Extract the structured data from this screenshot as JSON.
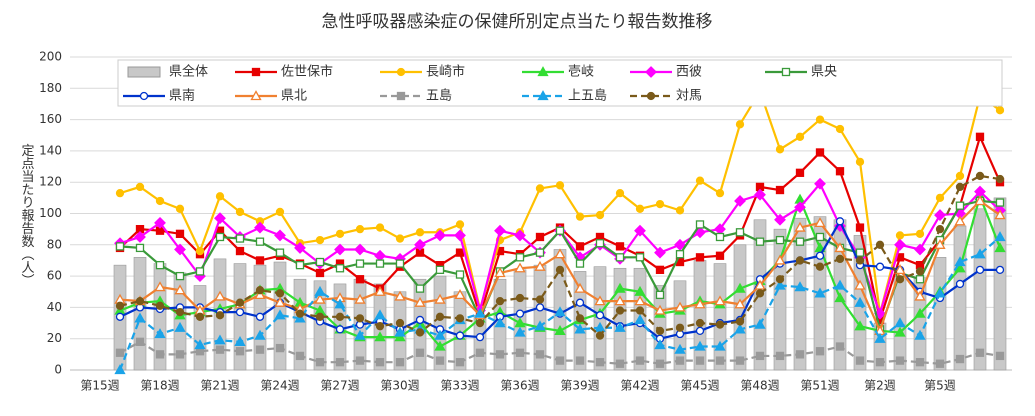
{
  "chart_data": {
    "type": "combo",
    "title": "急性呼吸器感染症の保健所別定点当たり報告数推移",
    "y_label": "定点当たり報告数（人）",
    "categories": [
      "第15週",
      null,
      null,
      "第18週",
      null,
      null,
      "第21週",
      null,
      null,
      "第24週",
      null,
      null,
      "第27週",
      null,
      null,
      "第30週",
      null,
      null,
      "第33週",
      null,
      null,
      "第36週",
      null,
      null,
      "第39週",
      null,
      null,
      "第42週",
      null,
      null,
      "第45週",
      null,
      null,
      "第48週",
      null,
      null,
      "第51週",
      null,
      null,
      "第2週",
      null,
      null,
      "第5週",
      null,
      null
    ],
    "ylim": [
      0,
      200
    ],
    "yticks": [
      0,
      20,
      40,
      60,
      80,
      100,
      120,
      140,
      160,
      180,
      200
    ],
    "grid": true,
    "series": [
      {
        "name": "県全体",
        "type": "bar",
        "color": "#c8c8c8",
        "values": [
          67,
          72,
          68,
          62,
          54,
          71,
          68,
          67,
          69,
          58,
          57,
          55,
          58,
          55,
          50,
          58,
          60,
          50,
          35,
          58,
          64,
          67,
          77,
          63,
          66,
          65,
          65,
          54,
          57,
          70,
          68,
          80,
          96,
          90,
          97,
          98,
          96,
          86,
          30,
          60,
          59,
          72,
          92,
          103,
          110
        ]
      },
      {
        "name": "佐世保市",
        "type": "line",
        "color": "#e60000",
        "marker": "square",
        "hollow": false,
        "dash": false,
        "values": [
          78,
          90,
          89,
          87,
          74,
          89,
          76,
          70,
          73,
          68,
          62,
          68,
          58,
          52,
          66,
          75,
          67,
          75,
          35,
          76,
          74,
          85,
          91,
          79,
          85,
          79,
          73,
          64,
          69,
          72,
          73,
          86,
          117,
          115,
          126,
          139,
          127,
          91,
          32,
          72,
          67,
          83,
          105,
          149,
          120
        ]
      },
      {
        "name": "長崎市",
        "type": "line",
        "color": "#ffc000",
        "marker": "circle",
        "hollow": false,
        "dash": false,
        "values": [
          113,
          117,
          108,
          103,
          76,
          111,
          101,
          95,
          101,
          81,
          83,
          87,
          90,
          91,
          84,
          88,
          88,
          93,
          39,
          83,
          88,
          116,
          118,
          98,
          99,
          113,
          103,
          106,
          102,
          121,
          113,
          157,
          178,
          141,
          149,
          160,
          154,
          133,
          36,
          86,
          87,
          110,
          124,
          175,
          166
        ]
      },
      {
        "name": "壱岐",
        "type": "line",
        "color": "#33dd33",
        "marker": "triangle",
        "hollow": false,
        "dash": false,
        "values": [
          38,
          43,
          44,
          35,
          37,
          39,
          42,
          51,
          52,
          43,
          38,
          26,
          21,
          21,
          21,
          30,
          15,
          22,
          33,
          37,
          30,
          27,
          25,
          32,
          36,
          52,
          50,
          36,
          38,
          44,
          42,
          52,
          57,
          70,
          109,
          78,
          46,
          28,
          25,
          24,
          36,
          50,
          65,
          111,
          78
        ]
      },
      {
        "name": "西彼",
        "type": "line",
        "color": "#ff00ff",
        "marker": "diamond",
        "hollow": false,
        "dash": false,
        "values": [
          81,
          85,
          94,
          77,
          60,
          97,
          85,
          91,
          86,
          78,
          68,
          77,
          77,
          73,
          71,
          80,
          86,
          86,
          38,
          89,
          86,
          75,
          89,
          72,
          80,
          71,
          89,
          75,
          80,
          88,
          90,
          108,
          112,
          96,
          104,
          119,
          92,
          72,
          36,
          80,
          77,
          99,
          100,
          114,
          102
        ]
      },
      {
        "name": "県央",
        "type": "line",
        "color": "#3a9a3a",
        "marker": "square",
        "hollow": true,
        "dash": false,
        "values": [
          79,
          78,
          67,
          60,
          63,
          85,
          84,
          82,
          75,
          67,
          69,
          65,
          68,
          68,
          68,
          52,
          64,
          61,
          33,
          63,
          72,
          75,
          89,
          68,
          81,
          72,
          72,
          48,
          74,
          93,
          85,
          88,
          82,
          83,
          82,
          85,
          78,
          75,
          26,
          62,
          58,
          83,
          105,
          108,
          107
        ]
      },
      {
        "name": "県南",
        "type": "line",
        "color": "#0033cc",
        "marker": "circle",
        "hollow": true,
        "dash": false,
        "values": [
          34,
          40,
          39,
          40,
          40,
          37,
          37,
          34,
          43,
          37,
          31,
          26,
          29,
          31,
          26,
          32,
          26,
          22,
          21,
          34,
          36,
          40,
          36,
          43,
          35,
          28,
          30,
          20,
          23,
          25,
          30,
          32,
          58,
          68,
          70,
          73,
          95,
          67,
          66,
          64,
          50,
          46,
          55,
          64,
          64
        ]
      },
      {
        "name": "県北",
        "type": "line",
        "color": "#f08030",
        "marker": "triangle",
        "hollow": true,
        "dash": false,
        "values": [
          45,
          44,
          53,
          51,
          38,
          47,
          42,
          48,
          43,
          39,
          45,
          46,
          45,
          50,
          47,
          43,
          45,
          48,
          35,
          62,
          65,
          66,
          74,
          52,
          44,
          44,
          44,
          38,
          40,
          42,
          44,
          42,
          54,
          70,
          91,
          94,
          78,
          54,
          25,
          64,
          47,
          80,
          95,
          108,
          99
        ]
      },
      {
        "name": "五島",
        "type": "line",
        "color": "#999999",
        "marker": "square",
        "hollow": false,
        "dash": true,
        "values": [
          11,
          18,
          10,
          10,
          12,
          13,
          12,
          13,
          14,
          9,
          5,
          5,
          6,
          5,
          5,
          11,
          6,
          5,
          11,
          10,
          11,
          10,
          6,
          6,
          5,
          4,
          6,
          4,
          6,
          6,
          6,
          6,
          9,
          9,
          10,
          12,
          15,
          6,
          5,
          6,
          5,
          4,
          7,
          11,
          9
        ]
      },
      {
        "name": "上五島",
        "type": "line",
        "color": "#1aa3e8",
        "marker": "triangle",
        "hollow": false,
        "dash": true,
        "values": [
          0,
          33,
          23,
          27,
          16,
          19,
          18,
          22,
          35,
          33,
          50,
          42,
          22,
          35,
          24,
          26,
          22,
          32,
          36,
          30,
          24,
          28,
          37,
          26,
          27,
          27,
          32,
          16,
          13,
          15,
          15,
          26,
          29,
          54,
          53,
          49,
          54,
          43,
          20,
          30,
          22,
          49,
          69,
          74,
          85
        ]
      },
      {
        "name": "対馬",
        "type": "line",
        "color": "#7a5a1a",
        "marker": "circle",
        "hollow": false,
        "dash": true,
        "values": [
          41,
          44,
          41,
          37,
          34,
          35,
          43,
          51,
          49,
          36,
          34,
          34,
          33,
          28,
          30,
          24,
          34,
          33,
          30,
          44,
          46,
          45,
          64,
          33,
          22,
          38,
          38,
          25,
          27,
          30,
          29,
          31,
          49,
          58,
          70,
          66,
          71,
          70,
          80,
          58,
          63,
          90,
          117,
          124,
          122
        ]
      }
    ]
  }
}
